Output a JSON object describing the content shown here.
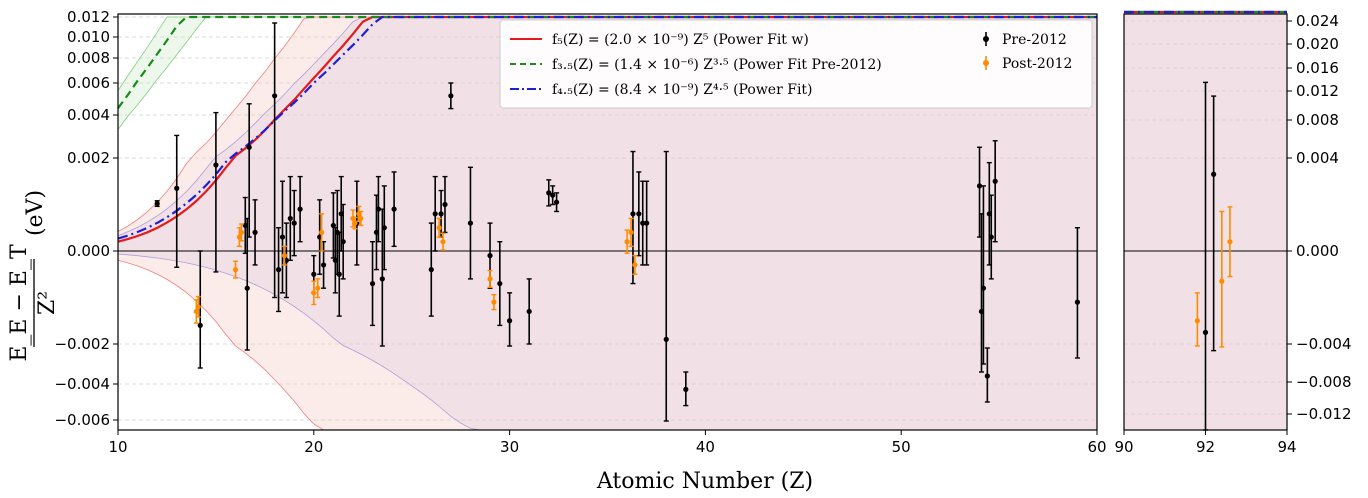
{
  "chart_data": [
    {
      "panel": "main",
      "type": "scatter",
      "xlabel": "Atomic Number (Z)",
      "ylabel": "(E_E − E_T)/Z² (eV)",
      "ylabel_fraction": {
        "numerator": "E_E − E_T",
        "denominator": "Z²",
        "unit": "(eV)"
      },
      "xlim": [
        10,
        60
      ],
      "y_scale": "symlog-like (nonlinear)",
      "xticks": [
        "10",
        "20",
        "30",
        "40",
        "50",
        "60"
      ],
      "yticks": [
        "0.012",
        "0.010",
        "0.008",
        "0.006",
        "0.004",
        "0.002",
        "0.000",
        "−0.002",
        "−0.004",
        "−0.006"
      ],
      "grid": "horizontal dashed",
      "zero_line": true,
      "legend_placement": "top-center",
      "legend": [
        {
          "label": "f₅(Z) = (2.0 × 10⁻⁹) Z⁵ (Power Fit w)",
          "style": "solid",
          "color": "#e41a1c"
        },
        {
          "label": "f₃.₅(Z) = (1.4 × 10⁻⁶) Z³·⁵ (Power Fit Pre-2012)",
          "style": "dashed",
          "color": "#1a8a1a"
        },
        {
          "label": "f₄.₅(Z) = (8.4 × 10⁻⁹) Z⁴·⁵ (Power Fit)",
          "style": "dashdot",
          "color": "#1f1fd6"
        },
        {
          "label": "Pre-2012",
          "style": "marker",
          "color": "#000000"
        },
        {
          "label": "Post-2012",
          "style": "marker",
          "color": "#ff8c00"
        }
      ],
      "fits": [
        {
          "name": "f5",
          "coef": 2e-09,
          "power": 5,
          "color": "#e41a1c",
          "dash": "",
          "width": 2.2
        },
        {
          "name": "f3.5",
          "coef": 1.4e-06,
          "power": 3.5,
          "color": "#1a8a1a",
          "dash": "8 5",
          "width": 2.2
        },
        {
          "name": "f4.5",
          "coef": 8.4e-09,
          "power": 4.5,
          "color": "#1f1fd6",
          "dash": "10 4 2 4",
          "width": 2.2
        }
      ],
      "series": [
        {
          "name": "Pre-2012",
          "color": "#000000",
          "points": [
            [
              12,
              0.00102,
              6e-05
            ],
            [
              13,
              0.00135,
              0.0017
            ],
            [
              14.2,
              -0.0016,
              0.0016
            ],
            [
              15,
              0.00185,
              0.0023
            ],
            [
              16.5,
              0.00055,
              0.0006
            ],
            [
              16.6,
              -0.0008,
              0.0015
            ],
            [
              16.7,
              0.0025,
              0.0022
            ],
            [
              17,
              0.0004,
              0.0007
            ],
            [
              18,
              0.0052,
              0.0062
            ],
            [
              18.2,
              -0.0004,
              0.0009
            ],
            [
              18.4,
              0.0003,
              0.0012
            ],
            [
              18.6,
              -0.0002,
              0.0008
            ],
            [
              18.8,
              0.0007,
              0.0009
            ],
            [
              19,
              0.0006,
              0.0007
            ],
            [
              19.3,
              0.0009,
              0.0007
            ],
            [
              20,
              -0.0005,
              0.0004
            ],
            [
              20.3,
              0.0003,
              0.0008
            ],
            [
              20.5,
              -0.0003,
              0.0005
            ],
            [
              21,
              0.00055,
              0.0007
            ],
            [
              21.1,
              -0.0002,
              0.0007
            ],
            [
              21.2,
              0.0004,
              0.0009
            ],
            [
              21.3,
              -0.0005,
              0.0009
            ],
            [
              21.4,
              0.0008,
              0.0008
            ],
            [
              21.5,
              0.0002,
              0.0008
            ],
            [
              22.2,
              0.0006,
              0.0009
            ],
            [
              23,
              -0.0007,
              0.0009
            ],
            [
              23.2,
              0.0004,
              0.0008
            ],
            [
              23.3,
              0.0009,
              0.0007
            ],
            [
              23.5,
              -0.0006,
              0.0015
            ],
            [
              23.6,
              0.0005,
              0.0009
            ],
            [
              24.1,
              0.0009,
              0.0008
            ],
            [
              26,
              -0.0004,
              0.001
            ],
            [
              26.2,
              0.0008,
              0.0008
            ],
            [
              26.5,
              0.0008,
              0.0005
            ],
            [
              26.7,
              0.001,
              0.0006
            ],
            [
              27,
              0.0052,
              0.0008
            ],
            [
              28,
              0.0006,
              0.0012
            ],
            [
              29,
              -0.0001,
              0.0007
            ],
            [
              29.5,
              -0.0007,
              0.0009
            ],
            [
              30,
              -0.0015,
              0.0006
            ],
            [
              31,
              -0.0013,
              0.0007
            ],
            [
              32,
              0.00125,
              0.00028
            ],
            [
              32.2,
              0.0012,
              0.0002
            ],
            [
              32.4,
              0.00105,
              0.0002
            ],
            [
              36.3,
              0.0008,
              0.0015
            ],
            [
              36.6,
              0.0008,
              0.0009
            ],
            [
              36.8,
              0.0006,
              0.0009
            ],
            [
              37,
              0.0006,
              0.0009
            ],
            [
              38,
              -0.0019,
              0.0042
            ],
            [
              39,
              -0.0043,
              0.0009
            ],
            [
              54,
              0.0014,
              0.0011
            ],
            [
              54.1,
              -0.0013,
              0.0021
            ],
            [
              54.2,
              -0.0008,
              0.0022
            ],
            [
              54.4,
              -0.0036,
              0.0014
            ],
            [
              54.5,
              0.0008,
              0.0011
            ],
            [
              54.6,
              0.0003,
              0.0009
            ],
            [
              54.8,
              0.0015,
              0.0013
            ],
            [
              59,
              -0.0011,
              0.0016
            ]
          ]
        },
        {
          "name": "Post-2012",
          "color": "#ff8c00",
          "points": [
            [
              14,
              -0.0013,
              0.00025
            ],
            [
              14.1,
              -0.0012,
              0.00022
            ],
            [
              16,
              -0.0004,
              0.00018
            ],
            [
              16.2,
              0.0003,
              0.0002
            ],
            [
              16.3,
              0.0004,
              0.00018
            ],
            [
              18.5,
              -0.0001,
              0.0002
            ],
            [
              20,
              -0.0009,
              0.00025
            ],
            [
              20.2,
              -0.0008,
              0.0002
            ],
            [
              20.4,
              0.0004,
              0.0004
            ],
            [
              22,
              0.0007,
              0.00018
            ],
            [
              22.1,
              0.0006,
              0.00012
            ],
            [
              22.3,
              0.0008,
              0.00016
            ],
            [
              22.4,
              0.0007,
              0.00015
            ],
            [
              26.4,
              0.0005,
              0.0002
            ],
            [
              26.6,
              0.0002,
              0.00018
            ],
            [
              29,
              -0.0006,
              0.00018
            ],
            [
              29.2,
              -0.0011,
              0.00016
            ],
            [
              36,
              0.0002,
              0.00025
            ],
            [
              36.2,
              0.0004,
              0.0003
            ],
            [
              36.4,
              -0.0003,
              0.0002
            ]
          ]
        }
      ]
    },
    {
      "panel": "right",
      "type": "scatter",
      "xlim": [
        90,
        94
      ],
      "xticks": [
        "90",
        "92",
        "94"
      ],
      "yticks": [
        "0.024",
        "0.020",
        "0.016",
        "0.012",
        "0.008",
        "0.004",
        "0.000",
        "−0.004",
        "−0.008",
        "−0.012"
      ],
      "y_axis_side": "right",
      "series": [
        {
          "name": "Pre-2012",
          "color": "#000000",
          "points": [
            [
              92,
              -0.0035,
              0.017
            ],
            [
              92.2,
              0.0033,
              0.008
            ]
          ]
        },
        {
          "name": "Post-2012",
          "color": "#ff8c00",
          "points": [
            [
              91.8,
              -0.003,
              0.0012
            ],
            [
              92.4,
              -0.0013,
              0.003
            ],
            [
              92.6,
              0.0004,
              0.0015
            ]
          ]
        }
      ]
    }
  ]
}
